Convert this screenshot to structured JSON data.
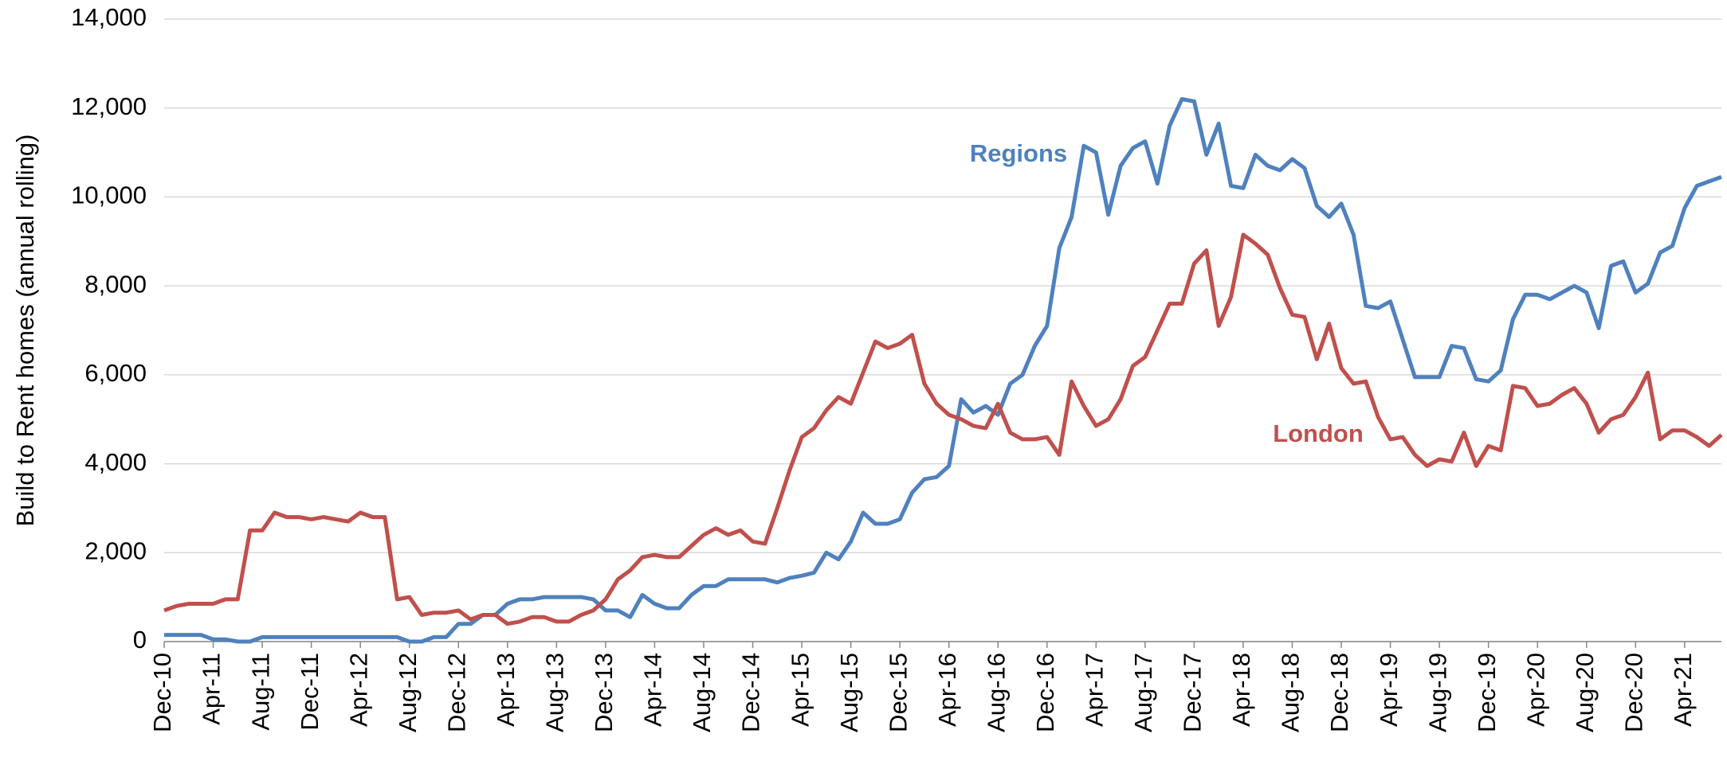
{
  "chart_data": {
    "type": "line",
    "y_label": "Build to Rent homes (annual rolling)",
    "categories": [
      "Dec-10",
      null,
      null,
      null,
      "Apr-11",
      null,
      null,
      null,
      "Aug-11",
      null,
      null,
      null,
      "Dec-11",
      null,
      null,
      null,
      "Apr-12",
      null,
      null,
      null,
      "Aug-12",
      null,
      null,
      null,
      "Dec-12",
      null,
      null,
      null,
      "Apr-13",
      null,
      null,
      null,
      "Aug-13",
      null,
      null,
      null,
      "Dec-13",
      null,
      null,
      null,
      "Apr-14",
      null,
      null,
      null,
      "Aug-14",
      null,
      null,
      null,
      "Dec-14",
      null,
      null,
      null,
      "Apr-15",
      null,
      null,
      null,
      "Aug-15",
      null,
      null,
      null,
      "Dec-15",
      null,
      null,
      null,
      "Apr-16",
      null,
      null,
      null,
      "Aug-16",
      null,
      null,
      null,
      "Dec-16",
      null,
      null,
      null,
      "Apr-17",
      null,
      null,
      null,
      "Aug-17",
      null,
      null,
      null,
      "Dec-17",
      null,
      null,
      null,
      "Apr-18",
      null,
      null,
      null,
      "Aug-18",
      null,
      null,
      null,
      "Dec-18",
      null,
      null,
      null,
      "Apr-19",
      null,
      null,
      null,
      "Aug-19",
      null,
      null,
      null,
      "Dec-19",
      null,
      null,
      null,
      "Apr-20",
      null,
      null,
      null,
      "Aug-20",
      null,
      null,
      null,
      "Dec-20",
      null,
      null,
      null,
      "Apr-21",
      null,
      null,
      null
    ],
    "series": [
      {
        "name": "Regions",
        "color": "#4f81bd",
        "values": [
          150,
          150,
          150,
          150,
          50,
          50,
          0,
          0,
          100,
          100,
          100,
          100,
          100,
          100,
          100,
          100,
          100,
          100,
          100,
          100,
          0,
          0,
          100,
          100,
          400,
          400,
          600,
          600,
          850,
          950,
          950,
          1000,
          1000,
          1000,
          1000,
          950,
          700,
          700,
          550,
          1050,
          850,
          750,
          750,
          1050,
          1250,
          1250,
          1400,
          1400,
          1400,
          1400,
          1330,
          1430,
          1480,
          1550,
          2000,
          1850,
          2250,
          2900,
          2650,
          2650,
          2750,
          3350,
          3650,
          3700,
          3950,
          5450,
          5150,
          5300,
          5100,
          5800,
          6000,
          6650,
          7100,
          8850,
          9550,
          11150,
          11000,
          9600,
          10700,
          11100,
          11250,
          10300,
          11600,
          12200,
          12150,
          10950,
          11650,
          10250,
          10200,
          10950,
          10700,
          10600,
          10850,
          10650,
          9800,
          9550,
          9850,
          9150,
          7550,
          7500,
          7650,
          6800,
          5950,
          5950,
          5950,
          6650,
          6600,
          5900,
          5850,
          6100,
          7250,
          7800,
          7800,
          7700,
          7850,
          8000,
          7850,
          7050,
          8450,
          8550,
          7850,
          8050,
          8750,
          8900,
          9750,
          10250,
          10350,
          10450
        ]
      },
      {
        "name": "London",
        "color": "#c0504d",
        "values": [
          700,
          800,
          850,
          850,
          850,
          950,
          950,
          2500,
          2500,
          2900,
          2800,
          2800,
          2750,
          2800,
          2750,
          2700,
          2900,
          2800,
          2800,
          950,
          1000,
          600,
          650,
          650,
          700,
          500,
          600,
          600,
          400,
          450,
          550,
          550,
          450,
          450,
          600,
          700,
          950,
          1400,
          1600,
          1900,
          1950,
          1900,
          1900,
          2150,
          2400,
          2550,
          2400,
          2500,
          2250,
          2200,
          3000,
          3850,
          4600,
          4800,
          5200,
          5500,
          5350,
          6050,
          6750,
          6600,
          6700,
          6900,
          5800,
          5350,
          5100,
          5000,
          4850,
          4800,
          5350,
          4700,
          4550,
          4550,
          4600,
          4200,
          5850,
          5300,
          4850,
          5000,
          5450,
          6200,
          6400,
          7000,
          7600,
          7600,
          8500,
          8800,
          7100,
          7750,
          9150,
          8950,
          8700,
          7950,
          7350,
          7300,
          6350,
          7150,
          6150,
          5800,
          5850,
          5050,
          4550,
          4600,
          4200,
          3950,
          4100,
          4050,
          4700,
          3950,
          4400,
          4300,
          5750,
          5700,
          5300,
          5350,
          5550,
          5700,
          5350,
          4700,
          5000,
          5100,
          5500,
          6050,
          4550,
          4750,
          4750,
          4600,
          4400,
          4650
        ]
      }
    ],
    "ylim": [
      0,
      14000
    ],
    "yticks": [
      0,
      {
        "value": 2000,
        "label": "2,000"
      },
      {
        "value": 4000,
        "label": "4,000"
      },
      {
        "value": 6000,
        "label": "6,000"
      },
      {
        "value": 8000,
        "label": "8,000"
      },
      {
        "value": 10000,
        "label": "10,000"
      },
      {
        "value": 12000,
        "label": "12,000"
      },
      {
        "value": 14000,
        "label": "14,000"
      }
    ],
    "grid": true
  }
}
